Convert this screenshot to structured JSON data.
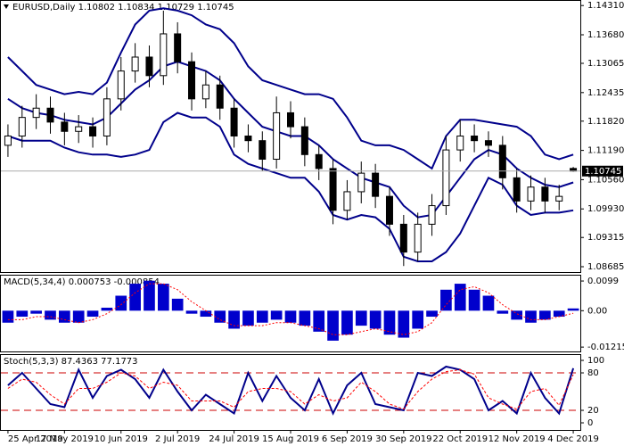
{
  "chart_data": [
    {
      "type": "candlestick",
      "title": "EURUSD,Daily  1.10802 1.10834 1.10729 1.10745",
      "categories": [
        "25 Apr 2019",
        null,
        null,
        null,
        "17 May 2019",
        null,
        null,
        null,
        "10 Jun 2019",
        null,
        null,
        null,
        "2 Jul 2019",
        null,
        null,
        null,
        "24 Jul 2019",
        null,
        null,
        null,
        "15 Aug 2019",
        null,
        null,
        null,
        "6 Sep 2019",
        null,
        null,
        null,
        "30 Sep 2019",
        null,
        null,
        null,
        "22 Oct 2019",
        null,
        null,
        null,
        "12 Nov 2019",
        null,
        null,
        null,
        "4 Dec 2019"
      ],
      "open": [
        1.113,
        1.115,
        1.119,
        1.121,
        1.118,
        1.116,
        1.117,
        1.115,
        1.123,
        1.129,
        1.132,
        1.128,
        1.137,
        1.131,
        1.123,
        1.126,
        1.121,
        1.115,
        1.114,
        1.11,
        1.12,
        1.117,
        1.111,
        1.108,
        1.099,
        1.103,
        1.107,
        1.102,
        1.096,
        1.09,
        1.096,
        1.1,
        1.112,
        1.115,
        1.114,
        1.113,
        1.106,
        1.101,
        1.104,
        1.101,
        1.10802
      ],
      "high": [
        1.1175,
        1.1215,
        1.124,
        1.1235,
        1.12,
        1.1195,
        1.119,
        1.1255,
        1.132,
        1.135,
        1.1345,
        1.142,
        1.1395,
        1.133,
        1.129,
        1.128,
        1.123,
        1.1175,
        1.116,
        1.1235,
        1.1225,
        1.119,
        1.113,
        1.11,
        1.1055,
        1.1095,
        1.109,
        1.104,
        1.098,
        1.0985,
        1.1025,
        1.115,
        1.1185,
        1.1175,
        1.116,
        1.115,
        1.108,
        1.1065,
        1.106,
        1.1045,
        1.10834
      ],
      "low": [
        1.1105,
        1.1125,
        1.1165,
        1.1155,
        1.113,
        1.1135,
        1.1125,
        1.113,
        1.1205,
        1.1265,
        1.1255,
        1.126,
        1.1285,
        1.1205,
        1.121,
        1.1185,
        1.1125,
        1.1115,
        1.1075,
        1.108,
        1.1145,
        1.1085,
        1.1055,
        1.096,
        1.097,
        1.1005,
        1.0995,
        1.0935,
        1.087,
        1.088,
        1.0935,
        1.098,
        1.1095,
        1.1115,
        1.1105,
        1.1035,
        1.0985,
        1.099,
        1.0985,
        1.099,
        1.10729
      ],
      "close": [
        1.115,
        1.119,
        1.121,
        1.118,
        1.116,
        1.117,
        1.115,
        1.123,
        1.129,
        1.132,
        1.128,
        1.137,
        1.131,
        1.123,
        1.126,
        1.121,
        1.115,
        1.114,
        1.11,
        1.12,
        1.117,
        1.111,
        1.108,
        1.099,
        1.103,
        1.107,
        1.102,
        1.096,
        1.09,
        1.096,
        1.1,
        1.112,
        1.115,
        1.114,
        1.113,
        1.106,
        1.101,
        1.104,
        1.101,
        1.102,
        1.10745
      ],
      "up_color": "#ffffff",
      "down_color": "#000000",
      "series": [
        {
          "color": "#00008b",
          "values": [
            1.132,
            1.129,
            1.126,
            1.125,
            1.124,
            1.1245,
            1.124,
            1.1265,
            1.133,
            1.139,
            1.142,
            1.1425,
            1.142,
            1.141,
            1.139,
            1.138,
            1.135,
            1.13,
            1.127,
            1.126,
            1.125,
            1.124,
            1.124,
            1.123,
            1.119,
            1.114,
            1.113,
            1.113,
            1.112,
            1.11,
            1.108,
            1.115,
            1.1185,
            1.1185,
            1.118,
            1.1175,
            1.117,
            1.115,
            1.111,
            1.11,
            1.111
          ]
        },
        {
          "color": "#00008b",
          "values": [
            1.123,
            1.121,
            1.12,
            1.1195,
            1.1185,
            1.118,
            1.1175,
            1.119,
            1.122,
            1.125,
            1.127,
            1.13,
            1.131,
            1.13,
            1.129,
            1.127,
            1.123,
            1.12,
            1.117,
            1.116,
            1.115,
            1.115,
            1.113,
            1.11,
            1.108,
            1.106,
            1.105,
            1.104,
            1.1,
            1.0975,
            1.098,
            1.102,
            1.106,
            1.11,
            1.112,
            1.111,
            1.108,
            1.106,
            1.1045,
            1.104,
            1.105
          ]
        },
        {
          "color": "#00008b",
          "values": [
            1.115,
            1.114,
            1.114,
            1.114,
            1.1125,
            1.1115,
            1.111,
            1.111,
            1.1105,
            1.111,
            1.112,
            1.118,
            1.12,
            1.119,
            1.119,
            1.117,
            1.111,
            1.109,
            1.108,
            1.107,
            1.106,
            1.106,
            1.103,
            1.098,
            1.097,
            1.098,
            1.0975,
            1.095,
            1.089,
            1.088,
            1.088,
            1.09,
            1.094,
            1.1,
            1.106,
            1.1045,
            1.1,
            1.098,
            1.0985,
            1.0985,
            1.099
          ]
        }
      ],
      "ylim": [
        1.0857,
        1.1441
      ],
      "yticks": [
        {
          "value": 1.1431,
          "label": "1.14310"
        },
        {
          "value": 1.1368,
          "label": "1.13680"
        },
        1.13065,
        1.12435,
        {
          "value": 1.1182,
          "label": "1.11820"
        },
        {
          "value": 1.1119,
          "label": "1.11190"
        },
        {
          "value": 1.1056,
          "label": "1.10560"
        },
        {
          "value": 1.0993,
          "label": "1.09930"
        },
        1.09315,
        1.08685
      ]
    },
    {
      "type": "macd",
      "title": "MACD(5,34,4) 0.000753 -0.000854",
      "histogram": {
        "color": "#0000cc",
        "values": [
          -0.004,
          -0.002,
          -0.001,
          -0.003,
          -0.004,
          -0.004,
          -0.002,
          0.001,
          0.005,
          0.009,
          0.01,
          0.009,
          0.004,
          -0.001,
          -0.002,
          -0.004,
          -0.006,
          -0.005,
          -0.004,
          -0.003,
          -0.004,
          -0.005,
          -0.007,
          -0.01,
          -0.008,
          -0.005,
          -0.006,
          -0.008,
          -0.009,
          -0.006,
          -0.002,
          0.007,
          0.009,
          0.007,
          0.005,
          -0.001,
          -0.003,
          -0.004,
          -0.003,
          -0.002,
          0.000753
        ]
      },
      "signal": {
        "color": "#ff0000",
        "values": [
          -0.003,
          -0.003,
          -0.002,
          -0.002,
          -0.003,
          -0.004,
          -0.003,
          -0.001,
          0.002,
          0.006,
          0.009,
          0.009,
          0.007,
          0.003,
          0.0,
          -0.003,
          -0.005,
          -0.005,
          -0.005,
          -0.004,
          -0.004,
          -0.005,
          -0.006,
          -0.008,
          -0.008,
          -0.007,
          -0.006,
          -0.007,
          -0.008,
          -0.007,
          -0.004,
          0.002,
          0.007,
          0.008,
          0.006,
          0.002,
          -0.001,
          -0.003,
          -0.003,
          -0.002,
          -0.000854
        ]
      },
      "ylim": [
        -0.0136,
        0.0117
      ],
      "yticks": [
        0.0099,
        {
          "value": 0,
          "label": "0.00"
        },
        -0.012151
      ]
    },
    {
      "type": "stochastic",
      "title": "Stoch(5,3,3) 87.4363 77.1773",
      "series": [
        {
          "color": "#00008b",
          "values": [
            60,
            80,
            55,
            30,
            25,
            85,
            40,
            75,
            85,
            70,
            40,
            85,
            50,
            20,
            45,
            30,
            15,
            80,
            35,
            75,
            40,
            20,
            70,
            15,
            60,
            80,
            30,
            25,
            20,
            80,
            75,
            90,
            85,
            70,
            20,
            35,
            15,
            80,
            40,
            15,
            87.4363
          ]
        },
        {
          "color": "#ff0000",
          "dashed": true,
          "values": [
            55,
            70,
            65,
            45,
            30,
            55,
            55,
            65,
            80,
            75,
            55,
            65,
            60,
            35,
            35,
            35,
            25,
            50,
            55,
            55,
            50,
            30,
            45,
            35,
            40,
            65,
            50,
            30,
            22,
            50,
            70,
            82,
            85,
            78,
            40,
            30,
            22,
            50,
            55,
            28,
            77.1773
          ]
        }
      ],
      "levels": [
        80,
        20
      ],
      "level_color": "#cc0000",
      "ylim": [
        -11.4,
        108.6
      ],
      "yticks": [
        100,
        80,
        20,
        0
      ]
    }
  ]
}
